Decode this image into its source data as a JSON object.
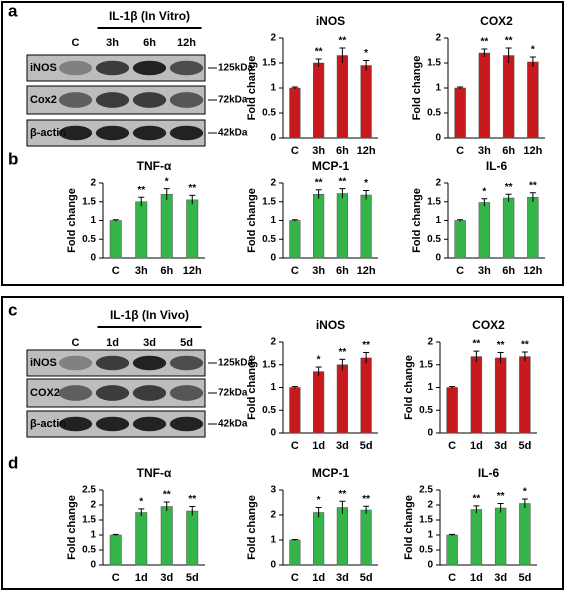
{
  "panels": [
    "a",
    "b",
    "c",
    "d"
  ],
  "blots": [
    {
      "title": "IL-1β (In Vitro)",
      "lanes": [
        "C",
        "3h",
        "6h",
        "12h"
      ],
      "rows": [
        {
          "label": "iNOS",
          "size": "125kDa"
        },
        {
          "label": "Cox2",
          "size": "72kDa"
        },
        {
          "label": "β-actin",
          "size": "42kDa"
        }
      ]
    },
    {
      "title": "IL-1β (In Vivo)",
      "lanes": [
        "C",
        "1d",
        "3d",
        "5d"
      ],
      "rows": [
        {
          "label": "iNOS",
          "size": "125kDa"
        },
        {
          "label": "COX2",
          "size": "72kDa"
        },
        {
          "label": "β-actin",
          "size": "42kDa"
        }
      ]
    }
  ],
  "chart_data": [
    {
      "type": "bar",
      "title": "iNOS",
      "ylabel": "Fold change",
      "categories": [
        "C",
        "3h",
        "6h",
        "12h"
      ],
      "values": [
        1,
        1.5,
        1.65,
        1.45
      ],
      "errors": [
        0.02,
        0.08,
        0.15,
        0.1
      ],
      "annotations": [
        null,
        "**",
        "**",
        "*"
      ],
      "color": "#c8191e",
      "ylim": [
        0,
        2
      ],
      "yticks": [
        0,
        0.5,
        1,
        1.5,
        2
      ]
    },
    {
      "type": "bar",
      "title": "COX2",
      "ylabel": "Fold change",
      "categories": [
        "C",
        "3h",
        "6h",
        "12h"
      ],
      "values": [
        1,
        1.7,
        1.65,
        1.52
      ],
      "errors": [
        0.02,
        0.08,
        0.15,
        0.1
      ],
      "annotations": [
        null,
        "**",
        "**",
        "*"
      ],
      "color": "#c8191e",
      "ylim": [
        0,
        2
      ],
      "yticks": [
        0,
        0.5,
        1,
        1.5,
        2
      ]
    },
    {
      "type": "bar",
      "title": "TNF-α",
      "ylabel": "Fold change",
      "categories": [
        "C",
        "3h",
        "6h",
        "12h"
      ],
      "values": [
        1,
        1.5,
        1.7,
        1.55
      ],
      "errors": [
        0.02,
        0.12,
        0.15,
        0.12
      ],
      "annotations": [
        null,
        "**",
        "*",
        "**"
      ],
      "color": "#35b44a",
      "ylim": [
        0,
        2
      ],
      "yticks": [
        0,
        0.5,
        1,
        1.5,
        2
      ]
    },
    {
      "type": "bar",
      "title": "MCP-1",
      "ylabel": "Fold change",
      "categories": [
        "C",
        "3h",
        "6h",
        "12h"
      ],
      "values": [
        1,
        1.7,
        1.72,
        1.68
      ],
      "errors": [
        0.02,
        0.12,
        0.13,
        0.12
      ],
      "annotations": [
        null,
        "**",
        "**",
        "*"
      ],
      "color": "#35b44a",
      "ylim": [
        0,
        2
      ],
      "yticks": [
        0,
        0.5,
        1,
        1.5,
        2
      ]
    },
    {
      "type": "bar",
      "title": "IL-6",
      "ylabel": "Fold change",
      "categories": [
        "C",
        "3h",
        "6h",
        "12h"
      ],
      "values": [
        1,
        1.48,
        1.6,
        1.62
      ],
      "errors": [
        0.02,
        0.1,
        0.1,
        0.12
      ],
      "annotations": [
        null,
        "*",
        "**",
        "**"
      ],
      "color": "#35b44a",
      "ylim": [
        0,
        2
      ],
      "yticks": [
        0,
        0.5,
        1,
        1.5,
        2
      ]
    },
    {
      "type": "bar",
      "title": "iNOS",
      "ylabel": "Fold change",
      "categories": [
        "C",
        "1d",
        "3d",
        "5d"
      ],
      "values": [
        1,
        1.35,
        1.5,
        1.65
      ],
      "errors": [
        0.02,
        0.1,
        0.12,
        0.12
      ],
      "annotations": [
        null,
        "*",
        "**",
        "**"
      ],
      "color": "#c8191e",
      "ylim": [
        0,
        2
      ],
      "yticks": [
        0,
        0.5,
        1,
        1.5,
        2
      ]
    },
    {
      "type": "bar",
      "title": "COX2",
      "ylabel": "Fold change",
      "categories": [
        "C",
        "1d",
        "3d",
        "5d"
      ],
      "values": [
        1,
        1.68,
        1.65,
        1.68
      ],
      "errors": [
        0.02,
        0.12,
        0.12,
        0.1
      ],
      "annotations": [
        null,
        "**",
        "**",
        "**"
      ],
      "color": "#c8191e",
      "ylim": [
        0,
        2
      ],
      "yticks": [
        0,
        0.5,
        1,
        1.5,
        2
      ]
    },
    {
      "type": "bar",
      "title": "TNF-α",
      "ylabel": "Fold change",
      "categories": [
        "C",
        "1d",
        "3d",
        "5d"
      ],
      "values": [
        1,
        1.75,
        1.95,
        1.8
      ],
      "errors": [
        0.02,
        0.12,
        0.15,
        0.15
      ],
      "annotations": [
        null,
        "*",
        "**",
        "**"
      ],
      "color": "#35b44a",
      "ylim": [
        0,
        2.5
      ],
      "yticks": [
        0,
        0.5,
        1,
        1.5,
        2,
        2.5
      ]
    },
    {
      "type": "bar",
      "title": "MCP-1",
      "ylabel": "Fold change",
      "categories": [
        "C",
        "1d",
        "3d",
        "5d"
      ],
      "values": [
        1,
        2.1,
        2.3,
        2.2
      ],
      "errors": [
        0.02,
        0.2,
        0.25,
        0.15
      ],
      "annotations": [
        null,
        "*",
        "**",
        "**"
      ],
      "color": "#35b44a",
      "ylim": [
        0,
        3
      ],
      "yticks": [
        0,
        1,
        2,
        3
      ]
    },
    {
      "type": "bar",
      "title": "IL-6",
      "ylabel": "Fold change",
      "categories": [
        "C",
        "1d",
        "3d",
        "5d"
      ],
      "values": [
        1,
        1.85,
        1.9,
        2.05
      ],
      "errors": [
        0.02,
        0.12,
        0.15,
        0.15
      ],
      "annotations": [
        null,
        "**",
        "**",
        "*"
      ],
      "color": "#35b44a",
      "ylim": [
        0,
        2.5
      ],
      "yticks": [
        0,
        0.5,
        1,
        1.5,
        2,
        2.5
      ]
    }
  ]
}
